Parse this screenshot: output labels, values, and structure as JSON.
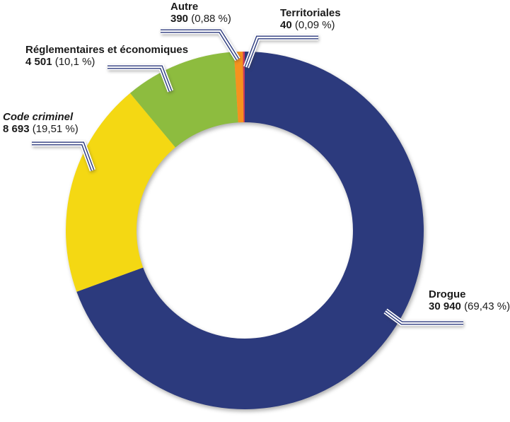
{
  "chart_data": {
    "type": "pie",
    "variant": "donut",
    "title": "",
    "direction": "clockwise",
    "start_angle_deg": 0,
    "legend_position": "callout-labels",
    "total": 44564,
    "categories": [
      "Drogue",
      "Code criminel",
      "Réglementaires et économiques",
      "Autre",
      "Territoriales"
    ],
    "values": [
      30940,
      8693,
      4501,
      390,
      40
    ],
    "percentages": [
      69.43,
      19.51,
      10.1,
      0.88,
      0.09
    ],
    "colors": [
      "#2C3A7D",
      "#F4D813",
      "#8DBC3F",
      "#F6921E",
      "#C8385E"
    ],
    "slice_keys": [
      "drogue",
      "code-criminel",
      "reglementaires-economiques",
      "autre",
      "territoriales"
    ],
    "labels": [
      {
        "name": "Drogue",
        "value": "30 940",
        "pct": "(69,43 %)"
      },
      {
        "name": "Code criminel",
        "value": "8 693",
        "pct": "(19,51 %)"
      },
      {
        "name": "Réglementaires et économiques",
        "value": "4 501",
        "pct": "(10,1 %)"
      },
      {
        "name": "Autre",
        "value": "390",
        "pct": "(0,88 %)"
      },
      {
        "name": "Territoriales",
        "value": "40",
        "pct": "(0,09 %)"
      }
    ],
    "leader_line_color": "#2C3A7D",
    "text_color": "#1a1a1a"
  }
}
